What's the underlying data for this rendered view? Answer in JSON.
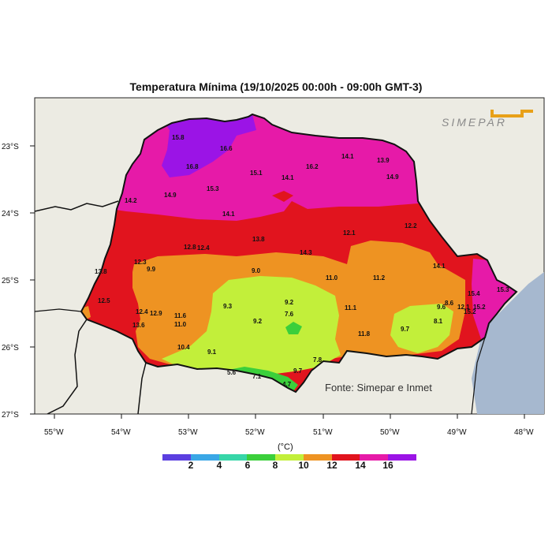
{
  "title": "Temperatura Mínima (19/10/2025 00:00h - 09:00h GMT-3)",
  "logo_text": "SIMEPAR",
  "credit": "Fonte: Simepar e Inmet",
  "legend": {
    "unit": "(°C)",
    "ticks": [
      "2",
      "4",
      "6",
      "8",
      "10",
      "12",
      "14",
      "16"
    ],
    "colors": [
      "#5b3fe0",
      "#3aa7e6",
      "#37d6a8",
      "#3bcf3b",
      "#c2ef3a",
      "#ee9322",
      "#e1141e",
      "#e61aa8",
      "#9b14e6"
    ]
  },
  "axes": {
    "lat_ticks": [
      "23°S",
      "24°S",
      "25°S",
      "26°S",
      "27°S"
    ],
    "lon_ticks": [
      "55°W",
      "54°W",
      "53°W",
      "52°W",
      "51°W",
      "50°W",
      "49°W",
      "48°W"
    ]
  },
  "station_values": [
    "15.8",
    "16.6",
    "16.8",
    "15.1",
    "14.1",
    "16.2",
    "14.1",
    "13.9",
    "14.9",
    "15.3",
    "14.9",
    "14.2",
    "14.1",
    "13.8",
    "12.1",
    "12.2",
    "12.8",
    "12.4",
    "14.3",
    "12.3",
    "9.9",
    "13.8",
    "9.0",
    "11.0",
    "11.2",
    "14.1",
    "12.5",
    "12.4",
    "12.9",
    "13.6",
    "11.6",
    "11.0",
    "9.3",
    "9.2",
    "7.6",
    "9.2",
    "11.1",
    "8.6",
    "9.6",
    "12.1",
    "15.2",
    "15.4",
    "15.2",
    "15.3",
    "8.1",
    "9.7",
    "11.8",
    "10.4",
    "9.1",
    "7.8",
    "9.7",
    "5.6",
    "7.1",
    "4.7"
  ]
}
